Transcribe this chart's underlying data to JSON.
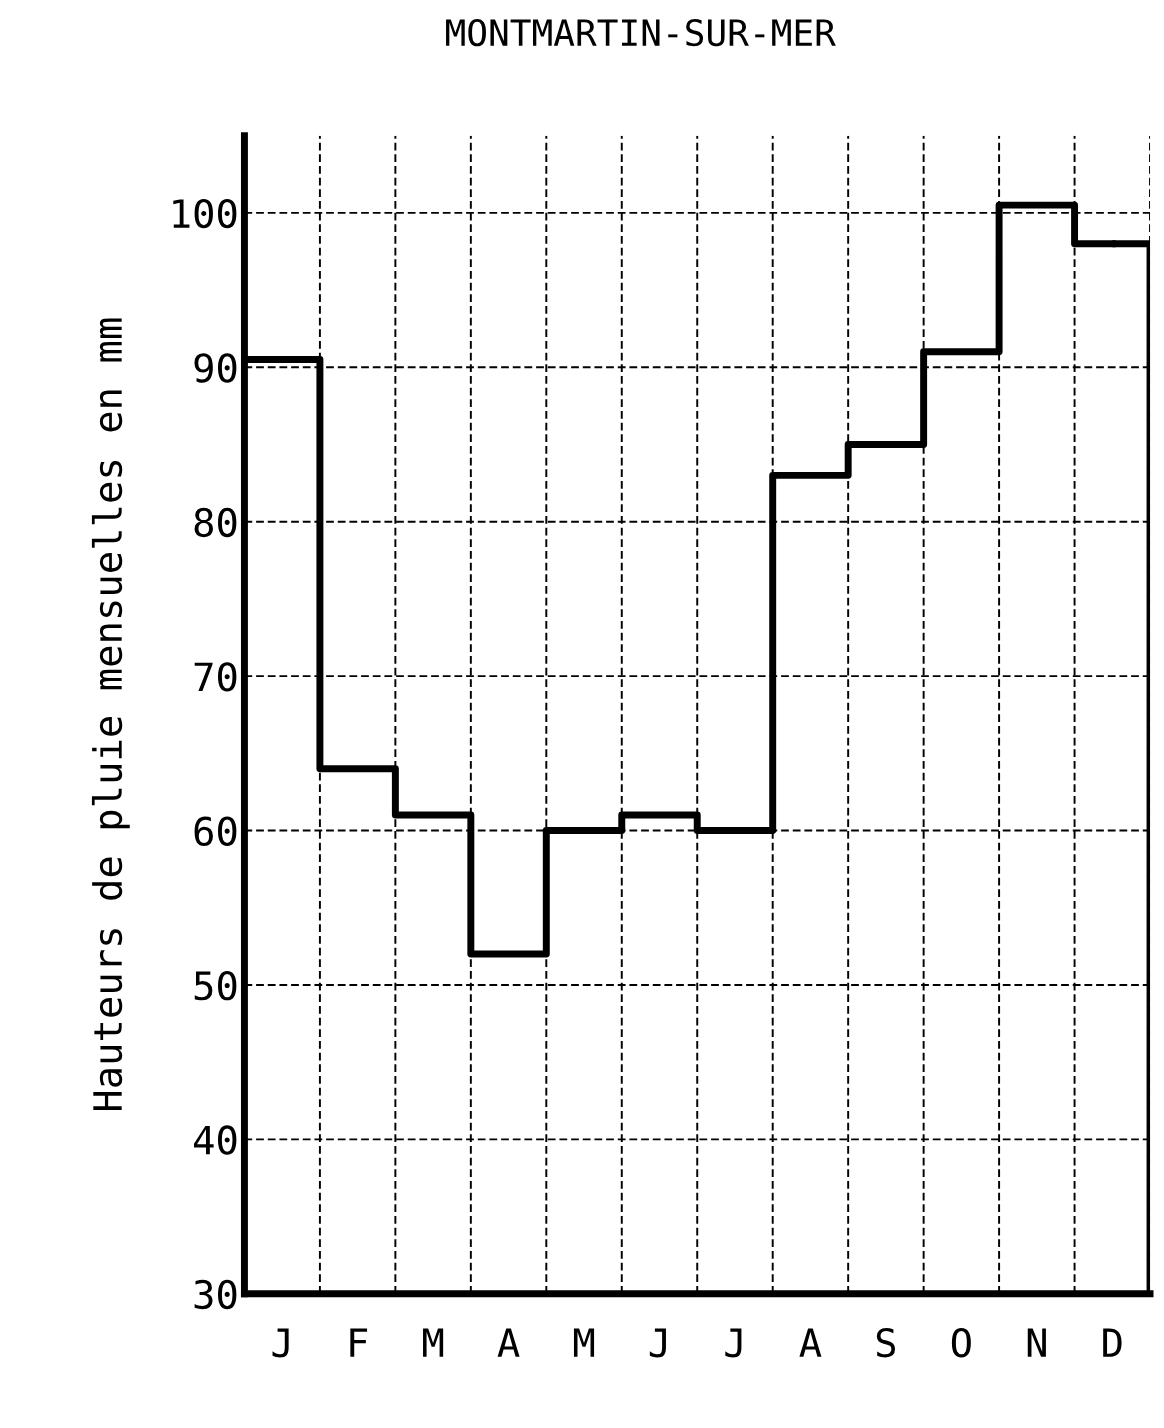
{
  "chart_data": {
    "type": "step",
    "title": "MONTMARTIN-SUR-MER",
    "ylabel": "Hauteurs de pluie mensuelles en mm",
    "categories": [
      "J",
      "F",
      "M",
      "A",
      "M",
      "J",
      "J",
      "A",
      "S",
      "O",
      "N",
      "D"
    ],
    "values": [
      90.5,
      64,
      61,
      52,
      60,
      61,
      60,
      83,
      85,
      91,
      100.5,
      98
    ],
    "color": "#000000",
    "ylim": [
      30,
      105
    ],
    "yticks": [
      30,
      40,
      50,
      60,
      70,
      80,
      90,
      100
    ],
    "grid": true
  }
}
